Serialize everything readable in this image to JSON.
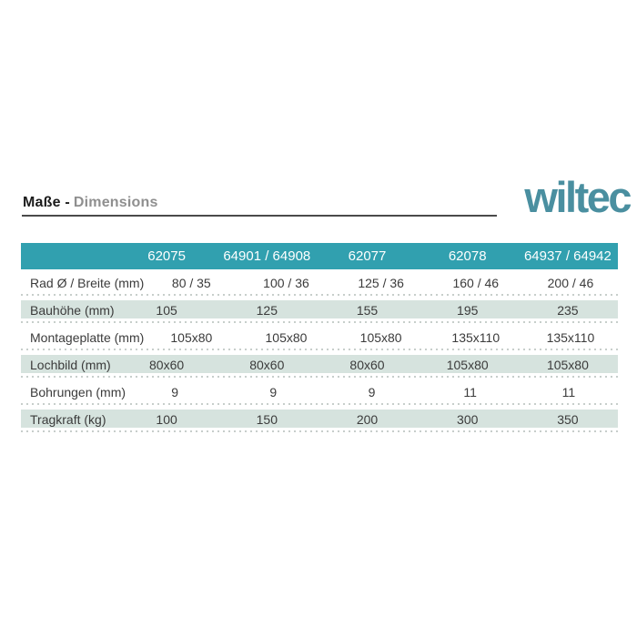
{
  "header": {
    "title_primary": "Maße -",
    "title_secondary": "Dimensions",
    "logo_text": "wiltec"
  },
  "table": {
    "columns": [
      "62075",
      "64901 / 64908",
      "62077",
      "62078",
      "64937 / 64942"
    ],
    "rows": [
      {
        "label": "Rad Ø / Breite (mm)",
        "values": [
          "80 / 35",
          "100 / 36",
          "125 / 36",
          "160 / 46",
          "200 / 46"
        ]
      },
      {
        "label": "Bauhöhe (mm)",
        "values": [
          "105",
          "125",
          "155",
          "195",
          "235"
        ]
      },
      {
        "label": "Montageplatte (mm)",
        "values": [
          "105x80",
          "105x80",
          "105x80",
          "135x110",
          "135x110"
        ]
      },
      {
        "label": "Lochbild (mm)",
        "values": [
          "80x60",
          "80x60",
          "80x60",
          "105x80",
          "105x80"
        ]
      },
      {
        "label": "Bohrungen (mm)",
        "values": [
          "9",
          "9",
          "9",
          "11",
          "11"
        ]
      },
      {
        "label": "Tragkraft (kg)",
        "values": [
          "100",
          "150",
          "200",
          "300",
          "350"
        ]
      }
    ]
  },
  "colors": {
    "table_header_bg": "#31a0af",
    "row_alt_bg": "#d6e3de",
    "logo": "#4a8fa0",
    "title_secondary": "#8f8f8f",
    "rule": "#4a4a4a"
  }
}
